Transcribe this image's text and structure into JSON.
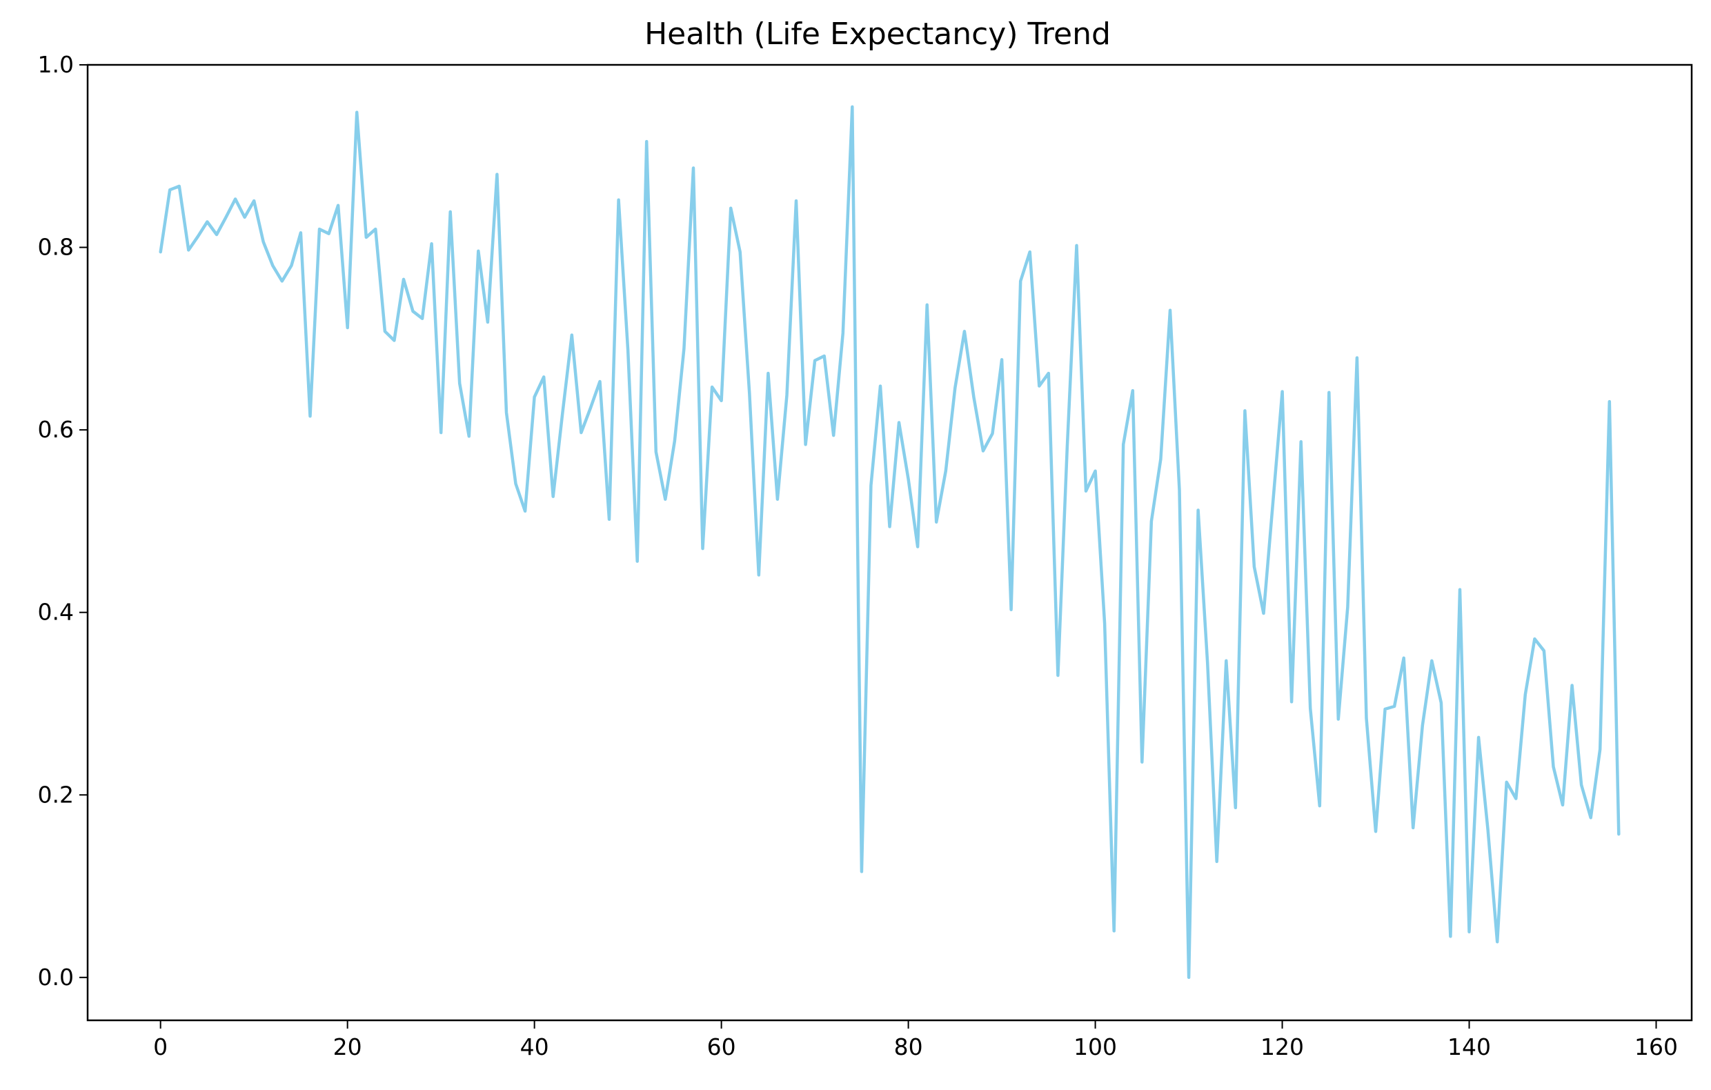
{
  "chart_data": {
    "type": "line",
    "title": "Health (Life Expectancy) Trend",
    "xlabel": "",
    "ylabel": "",
    "xlim": [
      -7.8,
      163.8
    ],
    "ylim": [
      -0.047,
      1.0
    ],
    "xticks": [
      0,
      20,
      40,
      60,
      80,
      100,
      120,
      140,
      160
    ],
    "xtick_labels": [
      "0",
      "20",
      "40",
      "60",
      "80",
      "100",
      "120",
      "140",
      "160"
    ],
    "yticks": [
      0.0,
      0.2,
      0.4,
      0.6,
      0.8,
      1.0
    ],
    "ytick_labels": [
      "0.0",
      "0.2",
      "0.4",
      "0.6",
      "0.8",
      "1.0"
    ],
    "grid": false,
    "legend": "none",
    "series": [
      {
        "color": "#87ceeb",
        "x": [
          0,
          1,
          2,
          3,
          4,
          5,
          6,
          7,
          8,
          9,
          10,
          11,
          12,
          13,
          14,
          15,
          16,
          17,
          18,
          19,
          20,
          21,
          22,
          23,
          24,
          25,
          26,
          27,
          28,
          29,
          30,
          31,
          32,
          33,
          34,
          35,
          36,
          37,
          38,
          39,
          40,
          41,
          42,
          43,
          44,
          45,
          46,
          47,
          48,
          49,
          50,
          51,
          52,
          53,
          54,
          55,
          56,
          57,
          58,
          59,
          60,
          61,
          62,
          63,
          64,
          65,
          66,
          67,
          68,
          69,
          70,
          71,
          72,
          73,
          74,
          75,
          76,
          77,
          78,
          79,
          80,
          81,
          82,
          83,
          84,
          85,
          86,
          87,
          88,
          89,
          90,
          91,
          92,
          93,
          94,
          95,
          96,
          97,
          98,
          99,
          100,
          101,
          102,
          103,
          104,
          105,
          106,
          107,
          108,
          109,
          110,
          111,
          112,
          113,
          114,
          115,
          116,
          117,
          118,
          119,
          120,
          121,
          122,
          123,
          124,
          125,
          126,
          127,
          128,
          129,
          130,
          131,
          132,
          133,
          134,
          135,
          136,
          137,
          138,
          139,
          140,
          141,
          142,
          143,
          144,
          145,
          146,
          147,
          148,
          149,
          150,
          151,
          152,
          153,
          154,
          155,
          156
        ],
        "y": [
          0.795,
          0.863,
          0.867,
          0.797,
          0.812,
          0.828,
          0.814,
          0.833,
          0.853,
          0.833,
          0.851,
          0.806,
          0.78,
          0.763,
          0.78,
          0.816,
          0.615,
          0.82,
          0.815,
          0.846,
          0.712,
          0.948,
          0.811,
          0.82,
          0.708,
          0.698,
          0.765,
          0.73,
          0.722,
          0.804,
          0.597,
          0.839,
          0.651,
          0.593,
          0.796,
          0.718,
          0.88,
          0.619,
          0.541,
          0.511,
          0.636,
          0.658,
          0.527,
          0.618,
          0.704,
          0.597,
          0.624,
          0.653,
          0.502,
          0.852,
          0.688,
          0.456,
          0.916,
          0.576,
          0.524,
          0.588,
          0.689,
          0.887,
          0.47,
          0.647,
          0.632,
          0.843,
          0.795,
          0.64,
          0.441,
          0.662,
          0.524,
          0.638,
          0.851,
          0.584,
          0.676,
          0.681,
          0.594,
          0.706,
          0.954,
          0.116,
          0.539,
          0.648,
          0.494,
          0.608,
          0.546,
          0.472,
          0.737,
          0.499,
          0.555,
          0.646,
          0.708,
          0.636,
          0.577,
          0.596,
          0.677,
          0.403,
          0.763,
          0.795,
          0.648,
          0.662,
          0.331,
          0.582,
          0.802,
          0.533,
          0.555,
          0.388,
          0.051,
          0.584,
          0.643,
          0.236,
          0.5,
          0.568,
          0.731,
          0.534,
          0.0,
          0.512,
          0.345,
          0.127,
          0.347,
          0.186,
          0.621,
          0.45,
          0.399,
          0.52,
          0.642,
          0.302,
          0.587,
          0.295,
          0.188,
          0.641,
          0.283,
          0.406,
          0.679,
          0.284,
          0.16,
          0.294,
          0.297,
          0.35,
          0.164,
          0.276,
          0.347,
          0.301,
          0.045,
          0.425,
          0.05,
          0.263,
          0.162,
          0.039,
          0.214,
          0.196,
          0.31,
          0.371,
          0.358,
          0.231,
          0.189,
          0.32,
          0.211,
          0.175,
          0.25,
          0.631,
          0.157
        ]
      }
    ]
  }
}
